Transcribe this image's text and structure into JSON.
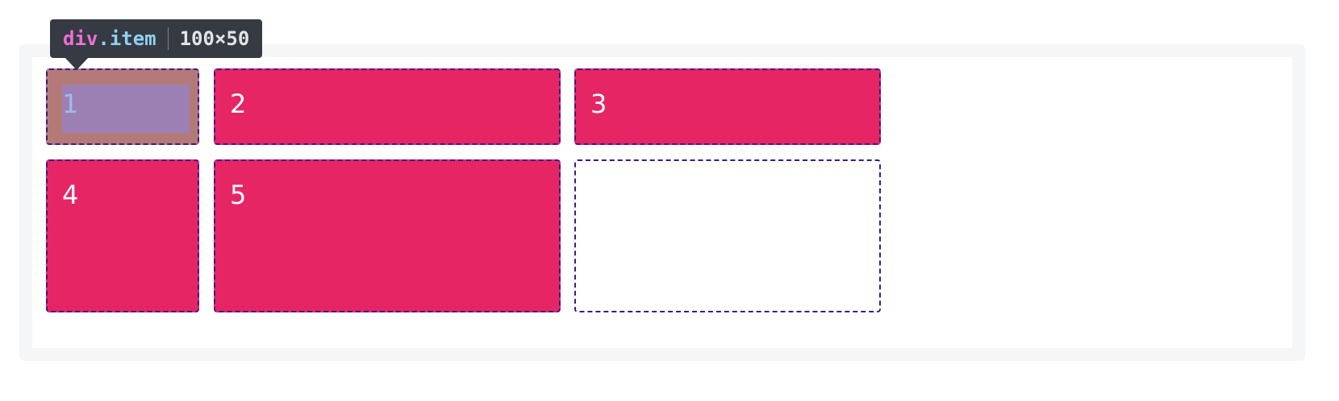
{
  "tooltip": {
    "tag": "div",
    "dot": ".",
    "class_name": "item",
    "dimensions": "100×50"
  },
  "grid": {
    "items": [
      {
        "label": "1",
        "state": "highlighted"
      },
      {
        "label": "2",
        "state": "filled"
      },
      {
        "label": "3",
        "state": "filled"
      },
      {
        "label": "4",
        "state": "filled"
      },
      {
        "label": "5",
        "state": "filled"
      },
      {
        "label": "",
        "state": "empty"
      }
    ]
  },
  "colors": {
    "item_fill": "#e62565",
    "grid_line": "#3a1a8c",
    "tooltip_bg": "#353a43",
    "tag_color": "#ee6fd6",
    "class_color": "#8fd1f0",
    "highlight_padding": "#b47a78",
    "highlight_content": "#9c80b4"
  }
}
